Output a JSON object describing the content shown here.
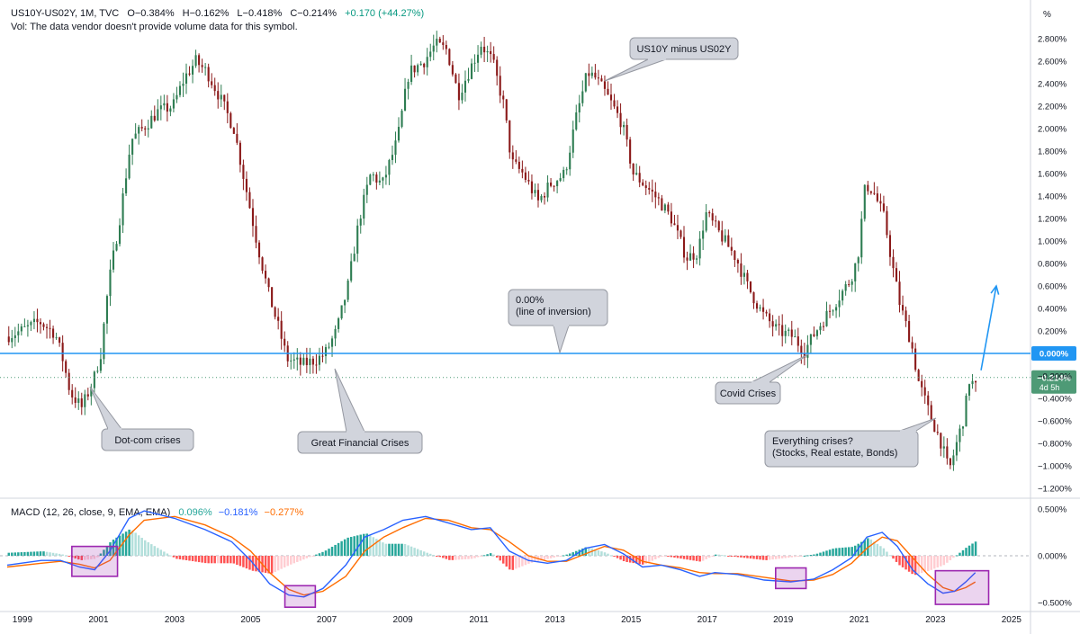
{
  "header": {
    "symbol_line": [
      "US10Y-US02Y, 1M, TVC",
      "O−0.384%",
      "H−0.162%",
      "L−0.418%",
      "C−0.214%",
      "+0.170 (+44.27%)"
    ],
    "volume_note": "Vol: The data vendor doesn't provide volume data for this symbol.",
    "macd_label": "MACD (12, 26, close, 9, EMA, EMA)",
    "macd_values": [
      "0.096%",
      "−0.181%",
      "−0.277%"
    ],
    "unit_label": "%"
  },
  "colors": {
    "up": "#2e7d52",
    "down": "#8b1a1a",
    "zero_line": "#2196f3",
    "macd_line": "#2962ff",
    "signal_line": "#ff6d00",
    "hist_up_strong": "#26a69a",
    "hist_up_weak": "#b2dfdb",
    "hist_down_strong": "#ff5252",
    "hist_down_weak": "#ffcdd2",
    "highlight_box": "#9c27b0",
    "callout_fill": "#d1d4dc",
    "price_tag": "#4e9a76"
  },
  "chart_data": [
    {
      "type": "candlestick",
      "title": "US10Y minus US02Y",
      "ylabel": "%",
      "ylim": [
        -1.3,
        2.95
      ],
      "xlim": [
        1998.6,
        2025.5
      ],
      "x_ticks": [
        "1999",
        "2001",
        "2003",
        "2005",
        "2007",
        "2009",
        "2011",
        "2013",
        "2015",
        "2017",
        "2019",
        "2021",
        "2023",
        "2025"
      ],
      "y_ticks": [
        "2.800%",
        "2.600%",
        "2.400%",
        "2.200%",
        "2.000%",
        "1.800%",
        "1.600%",
        "1.400%",
        "1.200%",
        "1.000%",
        "0.800%",
        "0.600%",
        "0.400%",
        "0.200%",
        "0.000%",
        "−0.200%",
        "−0.400%",
        "−0.600%",
        "−0.800%",
        "−1.000%",
        "−1.200%"
      ],
      "spread_path": [
        [
          1998.6,
          0.15
        ],
        [
          1999.0,
          0.2
        ],
        [
          1999.5,
          0.28
        ],
        [
          1999.9,
          0.18
        ],
        [
          2000.1,
          -0.05
        ],
        [
          2000.3,
          -0.35
        ],
        [
          2000.6,
          -0.48
        ],
        [
          2000.9,
          -0.25
        ],
        [
          2001.1,
          0.0
        ],
        [
          2001.3,
          0.6
        ],
        [
          2001.6,
          1.2
        ],
        [
          2001.9,
          1.9
        ],
        [
          2002.2,
          2.0
        ],
        [
          2002.6,
          2.15
        ],
        [
          2003.0,
          2.2
        ],
        [
          2003.3,
          2.45
        ],
        [
          2003.6,
          2.6
        ],
        [
          2003.9,
          2.5
        ],
        [
          2004.2,
          2.3
        ],
        [
          2004.6,
          2.0
        ],
        [
          2004.9,
          1.5
        ],
        [
          2005.2,
          1.0
        ],
        [
          2005.5,
          0.55
        ],
        [
          2005.8,
          0.2
        ],
        [
          2006.0,
          -0.05
        ],
        [
          2006.4,
          -0.1
        ],
        [
          2006.8,
          -0.05
        ],
        [
          2007.0,
          0.0
        ],
        [
          2007.3,
          0.2
        ],
        [
          2007.6,
          0.6
        ],
        [
          2007.9,
          1.2
        ],
        [
          2008.2,
          1.6
        ],
        [
          2008.5,
          1.5
        ],
        [
          2008.9,
          1.9
        ],
        [
          2009.2,
          2.5
        ],
        [
          2009.6,
          2.6
        ],
        [
          2009.9,
          2.75
        ],
        [
          2010.2,
          2.7
        ],
        [
          2010.5,
          2.3
        ],
        [
          2010.9,
          2.6
        ],
        [
          2011.1,
          2.75
        ],
        [
          2011.4,
          2.6
        ],
        [
          2011.7,
          2.2
        ],
        [
          2011.9,
          1.7
        ],
        [
          2012.2,
          1.6
        ],
        [
          2012.6,
          1.35
        ],
        [
          2012.9,
          1.5
        ],
        [
          2013.3,
          1.6
        ],
        [
          2013.6,
          2.1
        ],
        [
          2013.9,
          2.5
        ],
        [
          2014.1,
          2.45
        ],
        [
          2014.4,
          2.3
        ],
        [
          2014.8,
          2.05
        ],
        [
          2015.1,
          1.6
        ],
        [
          2015.4,
          1.5
        ],
        [
          2015.8,
          1.35
        ],
        [
          2016.1,
          1.2
        ],
        [
          2016.5,
          0.85
        ],
        [
          2016.8,
          0.9
        ],
        [
          2017.0,
          1.25
        ],
        [
          2017.4,
          1.05
        ],
        [
          2017.8,
          0.85
        ],
        [
          2018.1,
          0.6
        ],
        [
          2018.5,
          0.35
        ],
        [
          2018.9,
          0.2
        ],
        [
          2019.3,
          0.15
        ],
        [
          2019.6,
          0.02
        ],
        [
          2019.9,
          0.2
        ],
        [
          2020.2,
          0.35
        ],
        [
          2020.5,
          0.5
        ],
        [
          2020.8,
          0.65
        ],
        [
          2021.0,
          0.85
        ],
        [
          2021.2,
          1.5
        ],
        [
          2021.4,
          1.45
        ],
        [
          2021.7,
          1.2
        ],
        [
          2021.9,
          0.8
        ],
        [
          2022.1,
          0.45
        ],
        [
          2022.4,
          0.1
        ],
        [
          2022.6,
          -0.25
        ],
        [
          2022.9,
          -0.55
        ],
        [
          2023.2,
          -0.8
        ],
        [
          2023.4,
          -1.05
        ],
        [
          2023.6,
          -0.8
        ],
        [
          2023.8,
          -0.55
        ],
        [
          2023.95,
          -0.2
        ],
        [
          2024.05,
          -0.3
        ]
      ],
      "reference_line": {
        "value": 0.0,
        "label": "0.00%\n(line of inversion)"
      },
      "last_price": {
        "value": -0.214,
        "label": "−0.214%",
        "sublabel": "4d 5h"
      },
      "zero_tag": "0.000%",
      "annotations": [
        {
          "text": "US10Y minus US02Y",
          "x": 2014.0,
          "y": 2.4
        },
        {
          "text": "0.00%\n(line of inversion)",
          "x": 2013.0,
          "y": 0.0
        },
        {
          "text": "Dot-com crises",
          "x": 2000.5,
          "y": -0.35
        },
        {
          "text": "Great Financial Crises",
          "x": 2006.2,
          "y": -0.15
        },
        {
          "text": "Covid Crises",
          "x": 2019.6,
          "y": 0.0
        },
        {
          "text": "Everything crises?\n(Stocks, Real estate, Bonds)",
          "x": 2022.5,
          "y": -0.55
        }
      ],
      "arrow": {
        "from": [
          2024.2,
          -0.15
        ],
        "to": [
          2024.6,
          0.6
        ]
      }
    },
    {
      "type": "macd",
      "title": "MACD (12, 26, close, 9, EMA, EMA)",
      "ylim": [
        -0.6,
        0.6
      ],
      "y_ticks": [
        "0.500%",
        "0.000%",
        "−0.500%"
      ],
      "macd_line": [
        [
          1998.6,
          -0.1
        ],
        [
          1999.5,
          -0.05
        ],
        [
          2000.0,
          -0.05
        ],
        [
          2000.5,
          -0.12
        ],
        [
          2000.9,
          -0.15
        ],
        [
          2001.3,
          0.05
        ],
        [
          2001.8,
          0.4
        ],
        [
          2002.2,
          0.48
        ],
        [
          2003.0,
          0.4
        ],
        [
          2003.8,
          0.28
        ],
        [
          2004.5,
          0.15
        ],
        [
          2005.0,
          -0.05
        ],
        [
          2005.5,
          -0.3
        ],
        [
          2006.0,
          -0.42
        ],
        [
          2006.4,
          -0.44
        ],
        [
          2006.9,
          -0.35
        ],
        [
          2007.5,
          -0.1
        ],
        [
          2008.0,
          0.2
        ],
        [
          2008.5,
          0.28
        ],
        [
          2009.0,
          0.38
        ],
        [
          2009.6,
          0.42
        ],
        [
          2010.2,
          0.35
        ],
        [
          2010.8,
          0.28
        ],
        [
          2011.3,
          0.3
        ],
        [
          2011.8,
          0.05
        ],
        [
          2012.3,
          -0.05
        ],
        [
          2012.8,
          -0.08
        ],
        [
          2013.3,
          -0.05
        ],
        [
          2013.8,
          0.08
        ],
        [
          2014.3,
          0.12
        ],
        [
          2014.8,
          0.02
        ],
        [
          2015.3,
          -0.12
        ],
        [
          2015.8,
          -0.1
        ],
        [
          2016.3,
          -0.15
        ],
        [
          2016.8,
          -0.22
        ],
        [
          2017.2,
          -0.18
        ],
        [
          2017.8,
          -0.2
        ],
        [
          2018.5,
          -0.26
        ],
        [
          2019.2,
          -0.28
        ],
        [
          2019.8,
          -0.25
        ],
        [
          2020.3,
          -0.15
        ],
        [
          2020.8,
          -0.02
        ],
        [
          2021.2,
          0.2
        ],
        [
          2021.6,
          0.25
        ],
        [
          2022.0,
          0.1
        ],
        [
          2022.4,
          -0.15
        ],
        [
          2022.8,
          -0.3
        ],
        [
          2023.2,
          -0.4
        ],
        [
          2023.5,
          -0.38
        ],
        [
          2023.8,
          -0.28
        ],
        [
          2024.05,
          -0.18
        ]
      ],
      "signal_line": [
        [
          1998.6,
          -0.12
        ],
        [
          1999.5,
          -0.08
        ],
        [
          2000.0,
          -0.06
        ],
        [
          2000.5,
          -0.09
        ],
        [
          2000.9,
          -0.13
        ],
        [
          2001.3,
          -0.05
        ],
        [
          2001.8,
          0.22
        ],
        [
          2002.2,
          0.38
        ],
        [
          2003.0,
          0.42
        ],
        [
          2003.8,
          0.33
        ],
        [
          2004.5,
          0.2
        ],
        [
          2005.0,
          0.05
        ],
        [
          2005.5,
          -0.18
        ],
        [
          2006.0,
          -0.36
        ],
        [
          2006.4,
          -0.42
        ],
        [
          2006.9,
          -0.38
        ],
        [
          2007.5,
          -0.22
        ],
        [
          2008.0,
          0.05
        ],
        [
          2008.5,
          0.2
        ],
        [
          2009.0,
          0.3
        ],
        [
          2009.6,
          0.4
        ],
        [
          2010.2,
          0.38
        ],
        [
          2010.8,
          0.3
        ],
        [
          2011.3,
          0.28
        ],
        [
          2011.8,
          0.15
        ],
        [
          2012.3,
          0.0
        ],
        [
          2012.8,
          -0.06
        ],
        [
          2013.3,
          -0.06
        ],
        [
          2013.8,
          0.02
        ],
        [
          2014.3,
          0.1
        ],
        [
          2014.8,
          0.06
        ],
        [
          2015.3,
          -0.06
        ],
        [
          2015.8,
          -0.1
        ],
        [
          2016.3,
          -0.13
        ],
        [
          2016.8,
          -0.18
        ],
        [
          2017.2,
          -0.19
        ],
        [
          2017.8,
          -0.19
        ],
        [
          2018.5,
          -0.23
        ],
        [
          2019.2,
          -0.27
        ],
        [
          2019.8,
          -0.26
        ],
        [
          2020.3,
          -0.2
        ],
        [
          2020.8,
          -0.08
        ],
        [
          2021.2,
          0.08
        ],
        [
          2021.6,
          0.2
        ],
        [
          2022.0,
          0.16
        ],
        [
          2022.4,
          -0.02
        ],
        [
          2022.8,
          -0.2
        ],
        [
          2023.2,
          -0.34
        ],
        [
          2023.5,
          -0.38
        ],
        [
          2023.8,
          -0.34
        ],
        [
          2024.05,
          -0.28
        ]
      ],
      "highlight_boxes": [
        {
          "x": [
            2000.3,
            2001.5
          ],
          "y": [
            -0.22,
            0.1
          ]
        },
        {
          "x": [
            2005.9,
            2006.7
          ],
          "y": [
            -0.55,
            -0.32
          ]
        },
        {
          "x": [
            2018.8,
            2019.6
          ],
          "y": [
            -0.35,
            -0.13
          ]
        },
        {
          "x": [
            2023.0,
            2024.4
          ],
          "y": [
            -0.52,
            -0.16
          ]
        }
      ]
    }
  ]
}
